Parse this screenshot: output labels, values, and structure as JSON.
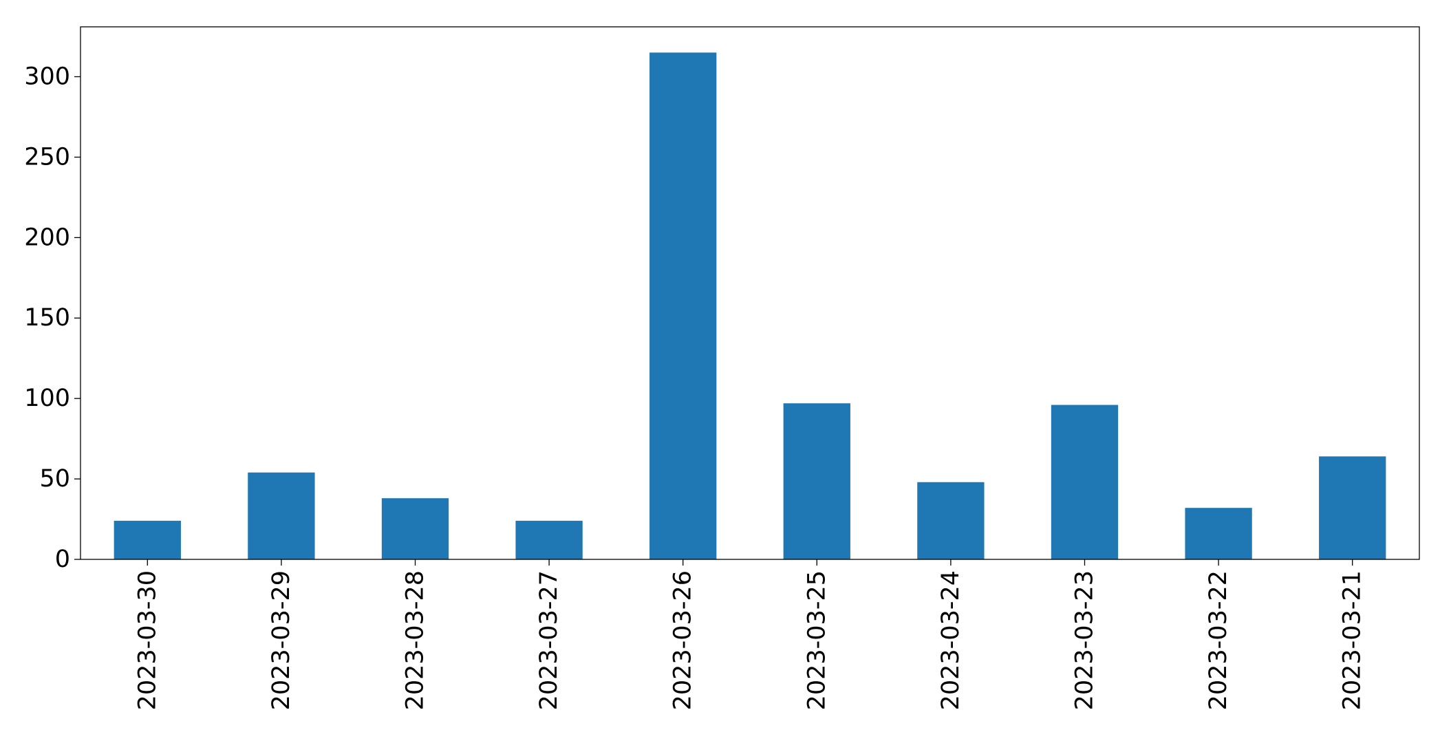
{
  "chart_data": {
    "type": "bar",
    "categories": [
      "2023-03-30",
      "2023-03-29",
      "2023-03-28",
      "2023-03-27",
      "2023-03-26",
      "2023-03-25",
      "2023-03-24",
      "2023-03-23",
      "2023-03-22",
      "2023-03-21"
    ],
    "values": [
      24,
      54,
      38,
      24,
      315,
      97,
      48,
      96,
      32,
      64
    ],
    "title": "",
    "xlabel": "",
    "ylabel": "",
    "ylim": [
      0,
      331
    ],
    "yticks": [
      0,
      50,
      100,
      150,
      200,
      250,
      300
    ],
    "xtick_rotation": "vertical",
    "grid": false,
    "legend": "none",
    "bar_color": "#1f77b4"
  }
}
